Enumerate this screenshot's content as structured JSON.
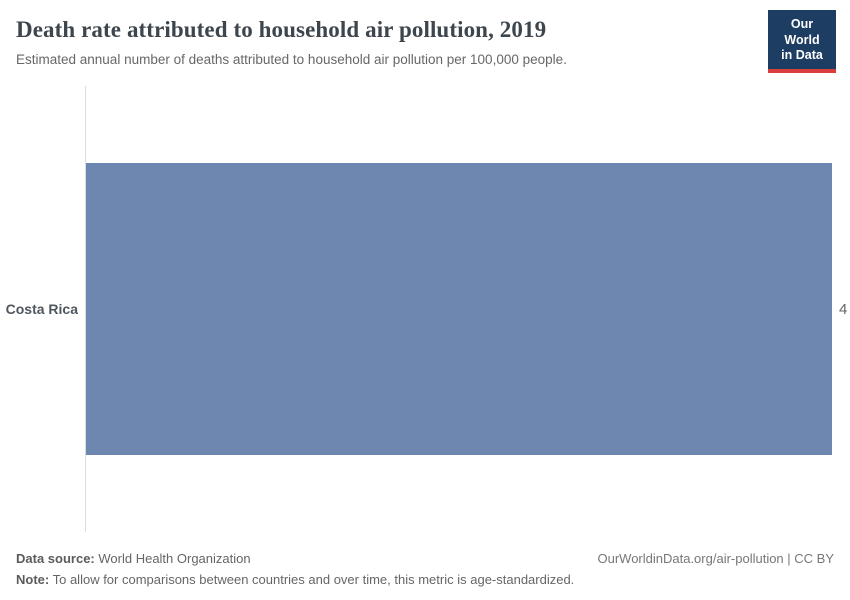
{
  "header": {
    "title": "Death rate attributed to household air pollution, 2019",
    "subtitle": "Estimated annual number of deaths attributed to household air pollution per 100,000 people.",
    "logo": {
      "line1": "Our World",
      "line2": "in Data",
      "bg_color": "#1d3d63",
      "stripe_color": "#d93d3d"
    }
  },
  "chart_data": {
    "type": "bar",
    "orientation": "horizontal",
    "categories": [
      "Costa Rica"
    ],
    "values": [
      4
    ],
    "value_labels": [
      "4"
    ],
    "xlim": [
      0,
      4
    ],
    "bar_color": "#6d87b1",
    "axis_line_color": "#dcdcdc",
    "grid": false,
    "legend": false,
    "title": "Death rate attributed to household air pollution, 2019",
    "xlabel": "",
    "ylabel": ""
  },
  "footer": {
    "data_source_label": "Data source:",
    "data_source": "World Health Organization",
    "note_label": "Note:",
    "note": "To allow for comparisons between countries and over time, this metric is age-standardized.",
    "attribution": "OurWorldinData.org/air-pollution | CC BY"
  }
}
